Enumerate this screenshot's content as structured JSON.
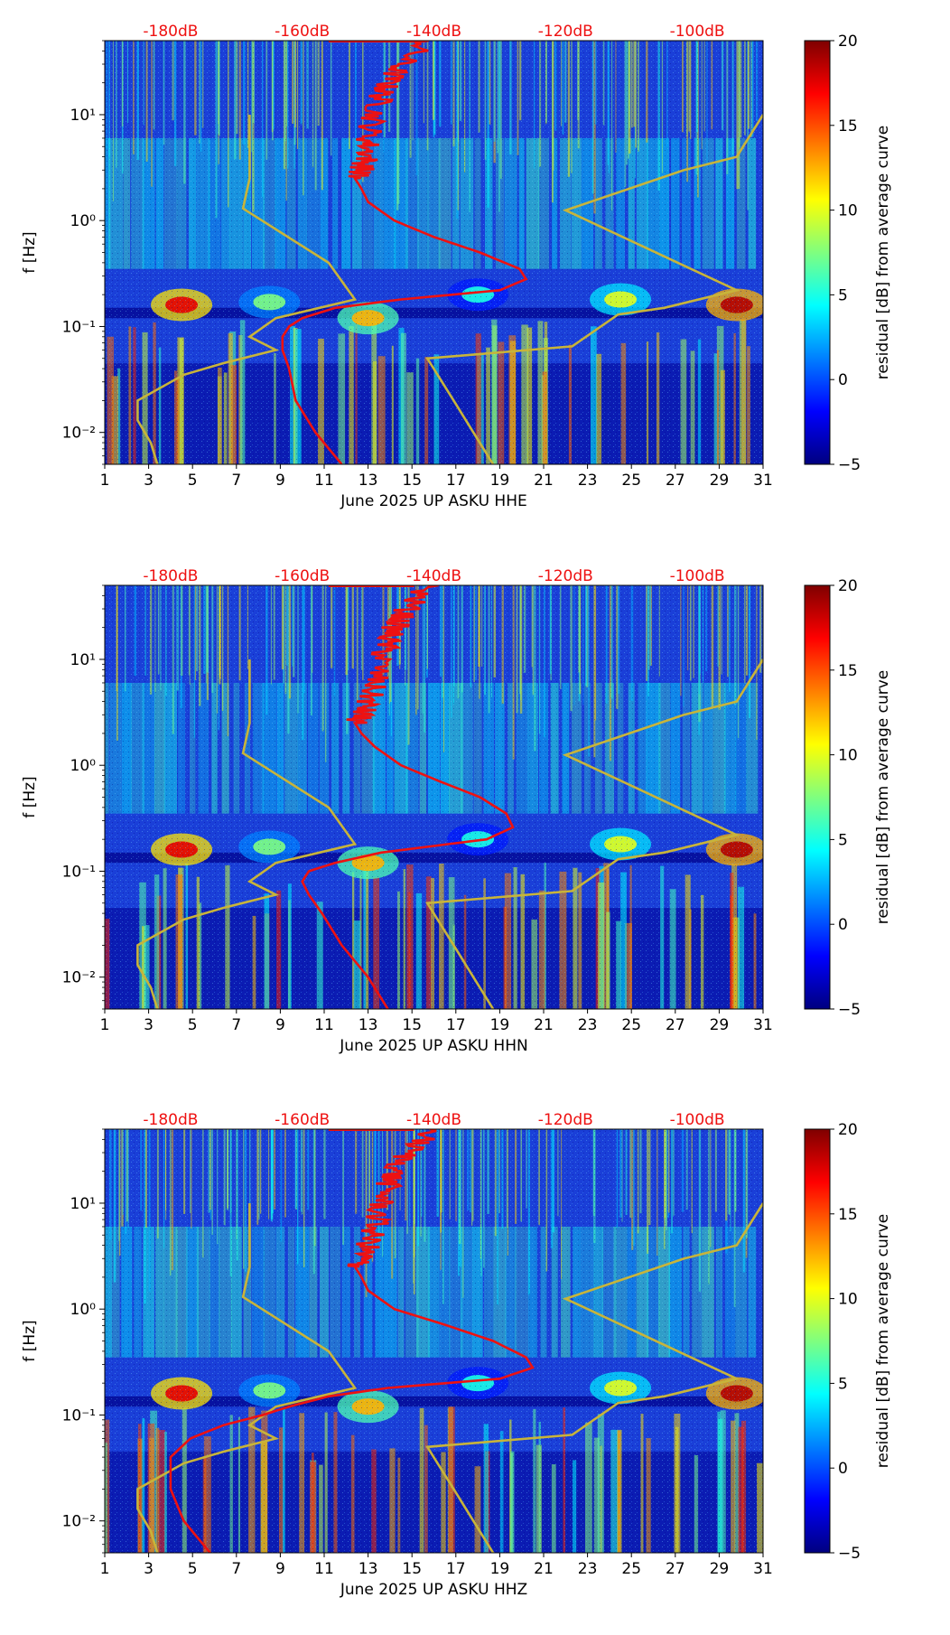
{
  "figure": {
    "title": "",
    "description_note": ""
  },
  "colorbar": {
    "label": "residual [dB] from average curve",
    "ticks": [
      -5,
      0,
      5,
      10,
      15,
      20
    ],
    "tick_labels": [
      "−5",
      "0",
      "5",
      "10",
      "15",
      "20"
    ],
    "range": [
      -5,
      20
    ],
    "colors": [
      "#00007f",
      "#0000ff",
      "#007fff",
      "#00ffff",
      "#7fff7f",
      "#ffff00",
      "#ff7f00",
      "#ff0000",
      "#7f0000"
    ]
  },
  "colors": {
    "psd_curve": "#ee1111",
    "model_curve": "#c8b43a",
    "db_label": "#ee1111",
    "background_field": "#1a3fd8"
  },
  "chart_data": [
    {
      "type": "heatmap",
      "channel": "HHE",
      "xlabel": "June 2025 UP ASKU  HHE",
      "ylabel": "f [Hz]",
      "xlim": [
        1,
        31
      ],
      "ylim": [
        0.005,
        50
      ],
      "x_ticks": [
        1,
        3,
        5,
        7,
        9,
        11,
        13,
        15,
        17,
        19,
        21,
        23,
        25,
        27,
        29,
        31
      ],
      "x_tick_labels": [
        "1",
        "3",
        "5",
        "7",
        "9",
        "11",
        "13",
        "15",
        "17",
        "19",
        "21",
        "23",
        "25",
        "27",
        "29",
        "31"
      ],
      "y_ticks": [
        0.01,
        0.1,
        1,
        10
      ],
      "y_tick_labels": [
        "10⁻²",
        "10⁻¹",
        "10⁰",
        "10¹"
      ],
      "top_axis": {
        "labels": [
          "-180dB",
          "-160dB",
          "-140dB",
          "-120dB",
          "-100dB"
        ],
        "values": [
          -180,
          -160,
          -140,
          -120,
          -100
        ],
        "xlim_db": [
          -190,
          -90
        ]
      },
      "psd_curve": {
        "name": "average PSD",
        "freq": [
          50,
          30,
          20,
          15,
          10,
          6,
          4,
          3,
          2.5,
          2,
          1.5,
          1,
          0.7,
          0.5,
          0.35,
          0.28,
          0.22,
          0.18,
          0.15,
          0.12,
          0.1,
          0.08,
          0.06,
          0.04,
          0.02,
          0.01,
          0.005
        ],
        "db": [
          -141,
          -145,
          -147,
          -148,
          -149,
          -150,
          -150,
          -151,
          -152,
          -151,
          -150,
          -146,
          -140,
          -133,
          -127,
          -126,
          -130,
          -145,
          -155,
          -160,
          -162,
          -163,
          -163,
          -162,
          -161,
          -158,
          -154
        ]
      },
      "model_curves": [
        {
          "name": "NLNM",
          "freq": [
            10,
            5,
            2.5,
            1.3,
            0.4,
            0.18,
            0.12,
            0.08,
            0.06,
            0.045,
            0.035,
            0.02,
            0.013,
            0.008,
            0.005
          ],
          "db": [
            -168,
            -168,
            -168,
            -169,
            -156,
            -152,
            -164,
            -168,
            -164,
            -172,
            -178,
            -185,
            -185,
            -183,
            -182
          ]
        },
        {
          "name": "NHNM",
          "freq": [
            10,
            4,
            3,
            1.25,
            0.22,
            0.15,
            0.13,
            0.065,
            0.05,
            0.02,
            0.01,
            0.005
          ],
          "db": [
            -90,
            -94,
            -102,
            -120,
            -94,
            -105,
            -112,
            -119,
            -141,
            -137,
            -134,
            -131
          ]
        }
      ]
    },
    {
      "type": "heatmap",
      "channel": "HHN",
      "xlabel": "June 2025 UP ASKU  HHN",
      "ylabel": "f [Hz]",
      "xlim": [
        1,
        31
      ],
      "ylim": [
        0.005,
        50
      ],
      "x_ticks": [
        1,
        3,
        5,
        7,
        9,
        11,
        13,
        15,
        17,
        19,
        21,
        23,
        25,
        27,
        29,
        31
      ],
      "x_tick_labels": [
        "1",
        "3",
        "5",
        "7",
        "9",
        "11",
        "13",
        "15",
        "17",
        "19",
        "21",
        "23",
        "25",
        "27",
        "29",
        "31"
      ],
      "y_ticks": [
        0.01,
        0.1,
        1,
        10
      ],
      "y_tick_labels": [
        "10⁻²",
        "10⁻¹",
        "10⁰",
        "10¹"
      ],
      "top_axis": {
        "labels": [
          "-180dB",
          "-160dB",
          "-140dB",
          "-120dB",
          "-100dB"
        ],
        "values": [
          -180,
          -160,
          -140,
          -120,
          -100
        ],
        "xlim_db": [
          -190,
          -90
        ]
      },
      "psd_curve": {
        "name": "average PSD",
        "freq": [
          50,
          30,
          20,
          15,
          10,
          6,
          4,
          3,
          2.5,
          2,
          1.5,
          1,
          0.7,
          0.5,
          0.35,
          0.26,
          0.2,
          0.15,
          0.12,
          0.1,
          0.08,
          0.06,
          0.04,
          0.02,
          0.01,
          0.005
        ],
        "db": [
          -141,
          -144,
          -146,
          -147,
          -148,
          -149,
          -150,
          -151,
          -152,
          -151,
          -149,
          -145,
          -139,
          -133,
          -129,
          -128,
          -132,
          -148,
          -155,
          -159,
          -160,
          -159,
          -157,
          -154,
          -150,
          -147
        ]
      },
      "model_curves": [
        {
          "name": "NLNM",
          "freq": [
            10,
            5,
            2.5,
            1.3,
            0.4,
            0.18,
            0.12,
            0.08,
            0.06,
            0.045,
            0.035,
            0.02,
            0.013,
            0.008,
            0.005
          ],
          "db": [
            -168,
            -168,
            -168,
            -169,
            -156,
            -152,
            -164,
            -168,
            -164,
            -172,
            -178,
            -185,
            -185,
            -183,
            -182
          ]
        },
        {
          "name": "NHNM",
          "freq": [
            10,
            4,
            3,
            1.25,
            0.22,
            0.15,
            0.13,
            0.065,
            0.05,
            0.02,
            0.01,
            0.005
          ],
          "db": [
            -90,
            -94,
            -102,
            -120,
            -94,
            -105,
            -112,
            -119,
            -141,
            -137,
            -134,
            -131
          ]
        }
      ]
    },
    {
      "type": "heatmap",
      "channel": "HHZ",
      "xlabel": "June 2025 UP ASKU  HHZ",
      "ylabel": "f [Hz]",
      "xlim": [
        1,
        31
      ],
      "ylim": [
        0.005,
        50
      ],
      "x_ticks": [
        1,
        3,
        5,
        7,
        9,
        11,
        13,
        15,
        17,
        19,
        21,
        23,
        25,
        27,
        29,
        31
      ],
      "x_tick_labels": [
        "1",
        "3",
        "5",
        "7",
        "9",
        "11",
        "13",
        "15",
        "17",
        "19",
        "21",
        "23",
        "25",
        "27",
        "29",
        "31"
      ],
      "y_ticks": [
        0.01,
        0.1,
        1,
        10
      ],
      "y_tick_labels": [
        "10⁻²",
        "10⁻¹",
        "10⁰",
        "10¹"
      ],
      "top_axis": {
        "labels": [
          "-180dB",
          "-160dB",
          "-140dB",
          "-120dB",
          "-100dB"
        ],
        "values": [
          -180,
          -160,
          -140,
          -120,
          -100
        ],
        "xlim_db": [
          -190,
          -90
        ]
      },
      "psd_curve": {
        "name": "average PSD",
        "freq": [
          50,
          30,
          20,
          15,
          10,
          6,
          4,
          3,
          2.5,
          2,
          1.5,
          1,
          0.7,
          0.5,
          0.35,
          0.28,
          0.22,
          0.18,
          0.15,
          0.12,
          0.1,
          0.08,
          0.06,
          0.04,
          0.02,
          0.01,
          0.005
        ],
        "db": [
          -140,
          -144,
          -146,
          -147,
          -148,
          -149,
          -150,
          -151,
          -152,
          -151,
          -150,
          -146,
          -138,
          -131,
          -126,
          -125,
          -130,
          -147,
          -156,
          -162,
          -166,
          -172,
          -177,
          -180,
          -180,
          -178,
          -174
        ]
      },
      "model_curves": [
        {
          "name": "NLNM",
          "freq": [
            10,
            5,
            2.5,
            1.3,
            0.4,
            0.18,
            0.12,
            0.08,
            0.06,
            0.045,
            0.035,
            0.02,
            0.013,
            0.008,
            0.005
          ],
          "db": [
            -168,
            -168,
            -168,
            -169,
            -156,
            -152,
            -164,
            -168,
            -164,
            -172,
            -178,
            -185,
            -185,
            -183,
            -182
          ]
        },
        {
          "name": "NHNM",
          "freq": [
            10,
            4,
            3,
            1.25,
            0.22,
            0.15,
            0.13,
            0.065,
            0.05,
            0.02,
            0.01,
            0.005
          ],
          "db": [
            -90,
            -94,
            -102,
            -120,
            -94,
            -105,
            -112,
            -119,
            -141,
            -137,
            -134,
            -131
          ]
        }
      ]
    }
  ]
}
